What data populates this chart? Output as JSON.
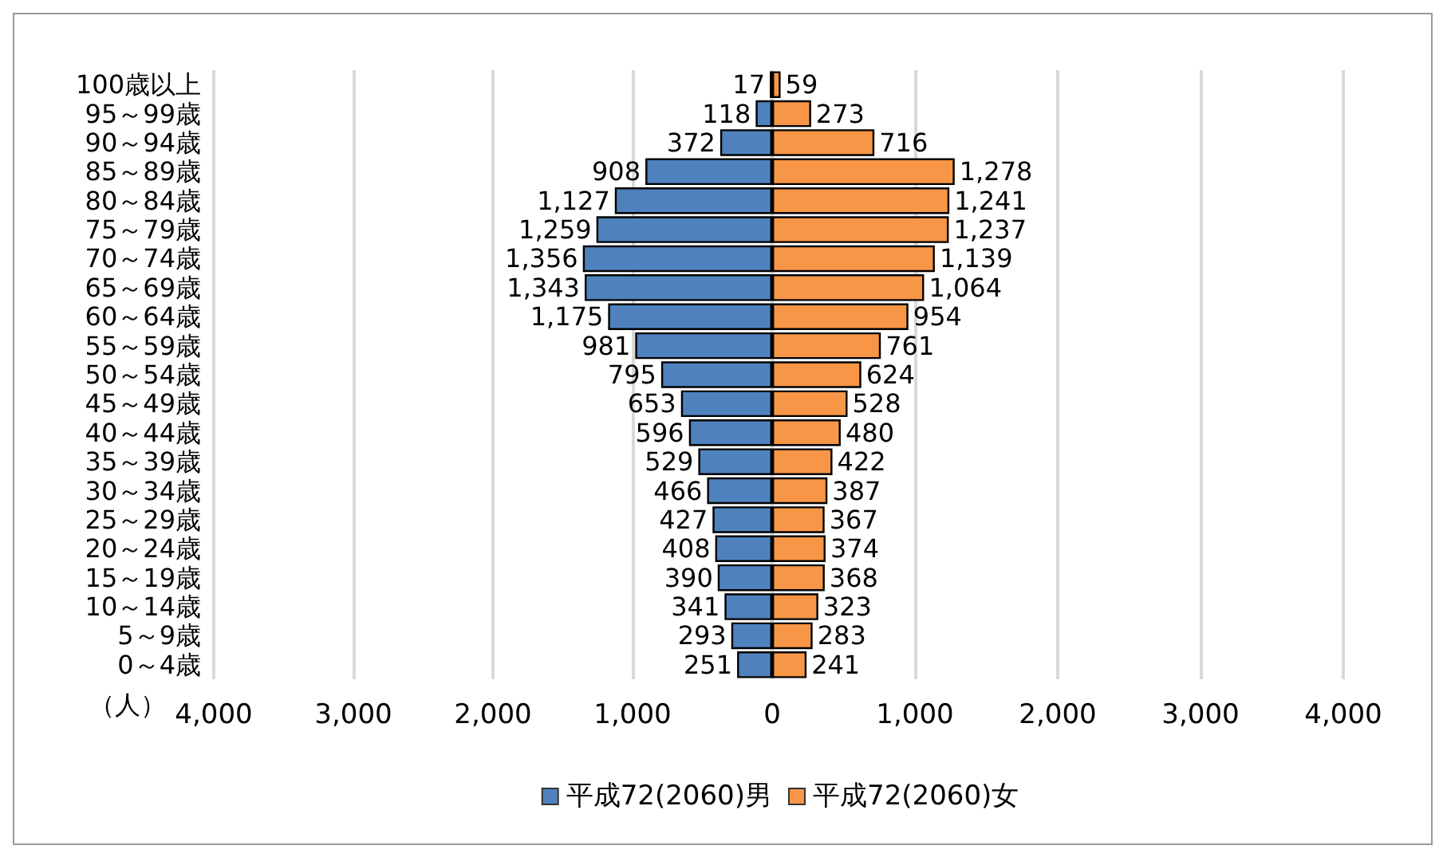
{
  "chart_data": [
    {
      "type": "bar",
      "orientation": "horizontal",
      "xlabel": "（人）",
      "categories": [
        "100歳以上",
        "95～99歳",
        "90～94歳",
        "85～89歳",
        "80～84歳",
        "75～79歳",
        "70～74歳",
        "65～69歳",
        "60～64歳",
        "55～59歳",
        "50～54歳",
        "45～49歳",
        "40～44歳",
        "35～39歳",
        "30～34歳",
        "25～29歳",
        "20～24歳",
        "15～19歳",
        "10～14歳",
        "5～9歳",
        "0～4歳"
      ],
      "series": [
        {
          "name": "平成72(2060)男",
          "color": "#4f81bd",
          "values": [
            17,
            118,
            372,
            908,
            1127,
            1259,
            1356,
            1343,
            1175,
            981,
            795,
            653,
            596,
            529,
            466,
            427,
            408,
            390,
            341,
            293,
            251
          ],
          "value_labels": [
            "17",
            "118",
            "372",
            "908",
            "1,127",
            "1,259",
            "1,356",
            "1,343",
            "1,175",
            "981",
            "795",
            "653",
            "596",
            "529",
            "466",
            "427",
            "408",
            "390",
            "341",
            "293",
            "251"
          ]
        }
      ],
      "xlim": [
        4000,
        0
      ],
      "xticks": [
        {
          "value": 4000,
          "label": "4,000"
        },
        {
          "value": 3000,
          "label": "3,000"
        },
        {
          "value": 2000,
          "label": "2,000"
        },
        {
          "value": 1000,
          "label": "1,000"
        },
        0
      ],
      "grid": "x",
      "legend": "bottom"
    },
    {
      "type": "bar",
      "orientation": "horizontal",
      "categories": [
        null,
        null,
        null,
        null,
        null,
        null,
        null,
        null,
        null,
        null,
        null,
        null,
        null,
        null,
        null,
        null,
        null,
        null,
        null,
        null,
        null
      ],
      "series": [
        {
          "name": "平成72(2060)女",
          "color": "#f79646",
          "values": [
            59,
            273,
            716,
            1278,
            1241,
            1237,
            1139,
            1064,
            954,
            761,
            624,
            528,
            480,
            422,
            387,
            367,
            374,
            368,
            323,
            283,
            241
          ],
          "value_labels": [
            "59",
            "273",
            "716",
            "1,278",
            "1,241",
            "1,237",
            "1,139",
            "1,064",
            "954",
            "761",
            "624",
            "528",
            "480",
            "422",
            "387",
            "367",
            "374",
            "368",
            "323",
            "283",
            "241"
          ]
        }
      ],
      "xlim": [
        0,
        4000
      ],
      "xticks": [
        {
          "value": 1000,
          "label": "1,000"
        },
        {
          "value": 2000,
          "label": "2,000"
        },
        {
          "value": 3000,
          "label": "3,000"
        },
        {
          "value": 4000,
          "label": "4,000"
        }
      ],
      "tick_labels": "x",
      "grid": "x",
      "legend": "bottom"
    }
  ]
}
